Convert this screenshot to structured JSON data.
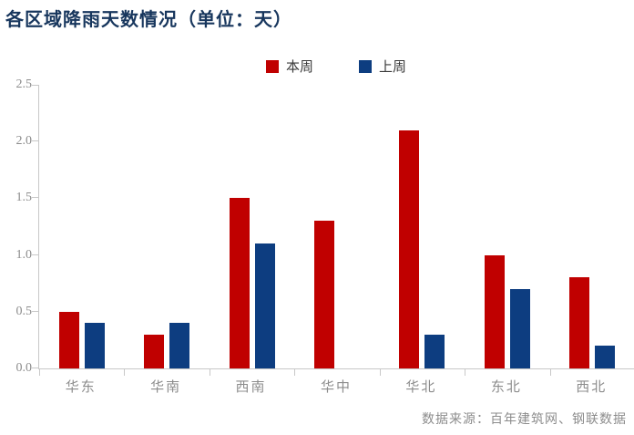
{
  "title": "各区域降雨天数情况（单位：天）",
  "source": "数据来源：百年建筑网、钢联数据",
  "colors": {
    "title": "#17365D",
    "series_this_week": "#C00000",
    "series_last_week": "#0D3D80",
    "axis_line": "#C8C8C8",
    "axis_text": "#8C8C8C",
    "legend_text": "#3A3A3A",
    "source_text": "#8C8C8C"
  },
  "chart_data": {
    "type": "bar",
    "title": "各区域降雨天数情况（单位：天）",
    "unit": "天",
    "categories": [
      "华东",
      "华南",
      "西南",
      "华中",
      "华北",
      "东北",
      "西北"
    ],
    "series": [
      {
        "name": "本周",
        "color": "#C00000",
        "values": [
          0.5,
          0.3,
          1.5,
          1.3,
          2.1,
          1.0,
          0.8
        ]
      },
      {
        "name": "上周",
        "color": "#0D3D80",
        "values": [
          0.4,
          0.4,
          1.1,
          0.0,
          0.3,
          0.7,
          0.2
        ]
      }
    ],
    "ylim": [
      0,
      2.5
    ],
    "yticks": [
      "0.0",
      "0.5",
      "1.0",
      "1.5",
      "2.0",
      "2.5"
    ],
    "ytick_step": 0.5,
    "grid": false,
    "legend_position": "top-center"
  }
}
